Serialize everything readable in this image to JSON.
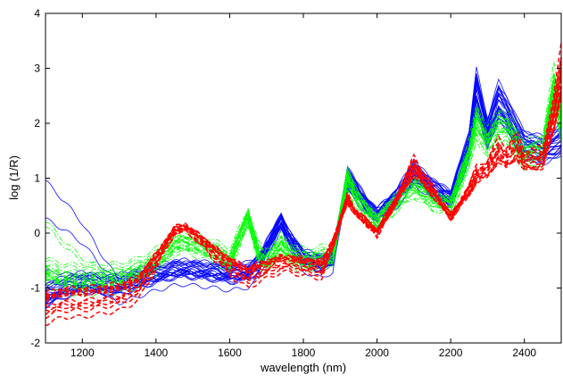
{
  "chart_data": {
    "type": "line",
    "xlabel": "wavelength (nm)",
    "ylabel": "log (1/R)",
    "xlim": [
      1100,
      2500
    ],
    "ylim": [
      -2,
      4
    ],
    "xticks": [
      1200,
      1400,
      1600,
      1800,
      2000,
      2200,
      2400
    ],
    "yticks": [
      -2,
      -1,
      0,
      1,
      2,
      3,
      4
    ],
    "grid": false,
    "legend": "none",
    "colors": {
      "blue": "#0000ff",
      "green": "#00ff00",
      "red": "#ff0000"
    },
    "x": [
      1100,
      1150,
      1200,
      1250,
      1300,
      1350,
      1400,
      1450,
      1480,
      1500,
      1550,
      1600,
      1650,
      1680,
      1700,
      1740,
      1760,
      1800,
      1850,
      1880,
      1920,
      1940,
      1970,
      2000,
      2050,
      2100,
      2150,
      2200,
      2250,
      2270,
      2300,
      2330,
      2350,
      2380,
      2400,
      2450,
      2480,
      2500
    ],
    "series": [
      {
        "color": "blue",
        "style": "solid",
        "count": 25,
        "spread": 0.3,
        "values": [
          -1.2,
          -1.05,
          -0.95,
          -1.0,
          -1.0,
          -0.9,
          -0.8,
          -0.72,
          -0.7,
          -0.72,
          -0.75,
          -0.8,
          -0.75,
          -0.6,
          -0.3,
          0.2,
          -0.1,
          -0.5,
          -0.6,
          -0.5,
          1.0,
          0.8,
          0.5,
          0.3,
          0.6,
          1.1,
          0.8,
          0.6,
          1.6,
          2.6,
          1.8,
          2.4,
          2.2,
          1.8,
          1.6,
          1.5,
          1.6,
          1.7
        ]
      },
      {
        "color": "green",
        "style": "dashdot",
        "count": 25,
        "spread": 0.3,
        "values": [
          -0.7,
          -0.8,
          -0.85,
          -0.8,
          -0.8,
          -0.7,
          -0.5,
          -0.2,
          -0.15,
          -0.2,
          -0.3,
          -0.5,
          0.3,
          -0.4,
          -0.5,
          -0.2,
          -0.35,
          -0.5,
          -0.45,
          -0.4,
          1.0,
          0.7,
          0.4,
          0.2,
          0.55,
          0.85,
          0.6,
          0.5,
          1.4,
          2.0,
          1.6,
          1.9,
          1.9,
          1.6,
          1.4,
          1.5,
          2.6,
          2.0
        ]
      },
      {
        "color": "red",
        "style": "dashed",
        "count": 14,
        "spread": 0.12,
        "values": [
          -1.35,
          -1.25,
          -1.25,
          -1.2,
          -1.15,
          -1.0,
          -0.5,
          0.05,
          0.1,
          0.0,
          -0.3,
          -0.6,
          -0.8,
          -0.7,
          -0.65,
          -0.55,
          -0.55,
          -0.6,
          -0.65,
          -0.2,
          0.65,
          0.4,
          0.2,
          0.0,
          0.6,
          1.25,
          0.8,
          0.3,
          0.8,
          1.1,
          1.2,
          1.55,
          1.4,
          1.6,
          1.35,
          1.4,
          2.2,
          3.0
        ]
      }
    ]
  }
}
